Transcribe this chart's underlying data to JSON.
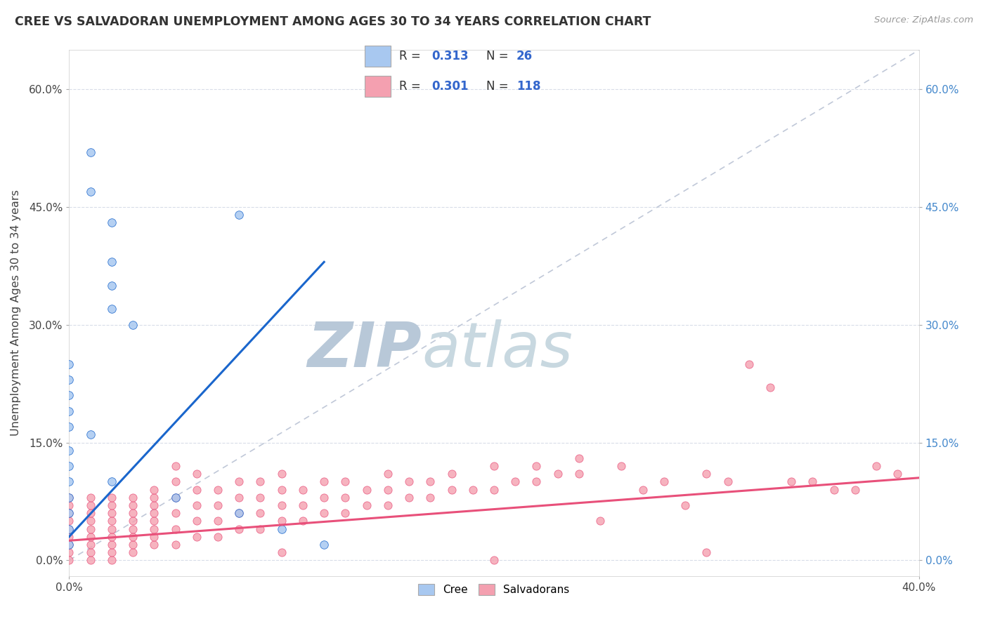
{
  "title": "CREE VS SALVADORAN UNEMPLOYMENT AMONG AGES 30 TO 34 YEARS CORRELATION CHART",
  "source": "Source: ZipAtlas.com",
  "ylabel": "Unemployment Among Ages 30 to 34 years",
  "xlim": [
    0.0,
    0.4
  ],
  "ylim": [
    -0.02,
    0.65
  ],
  "yticks": [
    0.0,
    0.15,
    0.3,
    0.45,
    0.6
  ],
  "ytick_labels": [
    "0.0%",
    "15.0%",
    "30.0%",
    "45.0%",
    "60.0%"
  ],
  "xticks": [
    0.0,
    0.4
  ],
  "xtick_labels": [
    "0.0%",
    "40.0%"
  ],
  "legend_r_cree": "0.313",
  "legend_n_cree": "26",
  "legend_r_salv": "0.301",
  "legend_n_salv": "118",
  "cree_color": "#a8c8f0",
  "salv_color": "#f4a0b0",
  "trendline_cree_color": "#1a66cc",
  "trendline_salv_color": "#e8507a",
  "diagonal_color": "#c0c8d8",
  "background_color": "#ffffff",
  "grid_color": "#d8dde8",
  "cree_scatter": [
    [
      0.01,
      0.52
    ],
    [
      0.01,
      0.47
    ],
    [
      0.02,
      0.43
    ],
    [
      0.02,
      0.38
    ],
    [
      0.02,
      0.35
    ],
    [
      0.02,
      0.32
    ],
    [
      0.03,
      0.3
    ],
    [
      0.08,
      0.44
    ],
    [
      0.0,
      0.25
    ],
    [
      0.0,
      0.23
    ],
    [
      0.0,
      0.21
    ],
    [
      0.0,
      0.19
    ],
    [
      0.0,
      0.17
    ],
    [
      0.0,
      0.14
    ],
    [
      0.0,
      0.12
    ],
    [
      0.0,
      0.1
    ],
    [
      0.0,
      0.08
    ],
    [
      0.0,
      0.06
    ],
    [
      0.0,
      0.04
    ],
    [
      0.01,
      0.16
    ],
    [
      0.02,
      0.1
    ],
    [
      0.05,
      0.08
    ],
    [
      0.08,
      0.06
    ],
    [
      0.1,
      0.04
    ],
    [
      0.12,
      0.02
    ],
    [
      0.0,
      0.02
    ]
  ],
  "salv_scatter": [
    [
      0.0,
      0.02
    ],
    [
      0.0,
      0.03
    ],
    [
      0.0,
      0.04
    ],
    [
      0.0,
      0.05
    ],
    [
      0.0,
      0.06
    ],
    [
      0.0,
      0.07
    ],
    [
      0.0,
      0.08
    ],
    [
      0.0,
      0.01
    ],
    [
      0.0,
      0.0
    ],
    [
      0.01,
      0.0
    ],
    [
      0.01,
      0.01
    ],
    [
      0.01,
      0.02
    ],
    [
      0.01,
      0.03
    ],
    [
      0.01,
      0.04
    ],
    [
      0.01,
      0.05
    ],
    [
      0.01,
      0.06
    ],
    [
      0.01,
      0.07
    ],
    [
      0.01,
      0.08
    ],
    [
      0.02,
      0.0
    ],
    [
      0.02,
      0.01
    ],
    [
      0.02,
      0.02
    ],
    [
      0.02,
      0.03
    ],
    [
      0.02,
      0.04
    ],
    [
      0.02,
      0.05
    ],
    [
      0.02,
      0.06
    ],
    [
      0.02,
      0.07
    ],
    [
      0.02,
      0.08
    ],
    [
      0.03,
      0.01
    ],
    [
      0.03,
      0.02
    ],
    [
      0.03,
      0.03
    ],
    [
      0.03,
      0.04
    ],
    [
      0.03,
      0.05
    ],
    [
      0.03,
      0.06
    ],
    [
      0.03,
      0.07
    ],
    [
      0.03,
      0.08
    ],
    [
      0.04,
      0.02
    ],
    [
      0.04,
      0.03
    ],
    [
      0.04,
      0.04
    ],
    [
      0.04,
      0.05
    ],
    [
      0.04,
      0.06
    ],
    [
      0.04,
      0.07
    ],
    [
      0.04,
      0.08
    ],
    [
      0.04,
      0.09
    ],
    [
      0.05,
      0.02
    ],
    [
      0.05,
      0.04
    ],
    [
      0.05,
      0.06
    ],
    [
      0.05,
      0.08
    ],
    [
      0.05,
      0.1
    ],
    [
      0.05,
      0.12
    ],
    [
      0.06,
      0.03
    ],
    [
      0.06,
      0.05
    ],
    [
      0.06,
      0.07
    ],
    [
      0.06,
      0.09
    ],
    [
      0.06,
      0.11
    ],
    [
      0.07,
      0.03
    ],
    [
      0.07,
      0.05
    ],
    [
      0.07,
      0.07
    ],
    [
      0.07,
      0.09
    ],
    [
      0.08,
      0.04
    ],
    [
      0.08,
      0.06
    ],
    [
      0.08,
      0.08
    ],
    [
      0.08,
      0.1
    ],
    [
      0.09,
      0.04
    ],
    [
      0.09,
      0.06
    ],
    [
      0.09,
      0.08
    ],
    [
      0.09,
      0.1
    ],
    [
      0.1,
      0.05
    ],
    [
      0.1,
      0.07
    ],
    [
      0.1,
      0.09
    ],
    [
      0.1,
      0.11
    ],
    [
      0.11,
      0.05
    ],
    [
      0.11,
      0.07
    ],
    [
      0.11,
      0.09
    ],
    [
      0.12,
      0.06
    ],
    [
      0.12,
      0.08
    ],
    [
      0.12,
      0.1
    ],
    [
      0.13,
      0.06
    ],
    [
      0.13,
      0.08
    ],
    [
      0.13,
      0.1
    ],
    [
      0.14,
      0.07
    ],
    [
      0.14,
      0.09
    ],
    [
      0.15,
      0.07
    ],
    [
      0.15,
      0.09
    ],
    [
      0.15,
      0.11
    ],
    [
      0.16,
      0.08
    ],
    [
      0.16,
      0.1
    ],
    [
      0.17,
      0.08
    ],
    [
      0.17,
      0.1
    ],
    [
      0.18,
      0.09
    ],
    [
      0.18,
      0.11
    ],
    [
      0.19,
      0.09
    ],
    [
      0.2,
      0.09
    ],
    [
      0.2,
      0.12
    ],
    [
      0.21,
      0.1
    ],
    [
      0.22,
      0.1
    ],
    [
      0.22,
      0.12
    ],
    [
      0.23,
      0.11
    ],
    [
      0.24,
      0.11
    ],
    [
      0.24,
      0.13
    ],
    [
      0.25,
      0.05
    ],
    [
      0.26,
      0.12
    ],
    [
      0.27,
      0.09
    ],
    [
      0.28,
      0.1
    ],
    [
      0.29,
      0.07
    ],
    [
      0.3,
      0.11
    ],
    [
      0.31,
      0.1
    ],
    [
      0.32,
      0.25
    ],
    [
      0.33,
      0.22
    ],
    [
      0.34,
      0.1
    ],
    [
      0.35,
      0.1
    ],
    [
      0.36,
      0.09
    ],
    [
      0.37,
      0.09
    ],
    [
      0.38,
      0.12
    ],
    [
      0.39,
      0.11
    ],
    [
      0.2,
      0.0
    ],
    [
      0.1,
      0.01
    ],
    [
      0.3,
      0.01
    ]
  ],
  "cree_trendline": [
    [
      0.0,
      0.03
    ],
    [
      0.12,
      0.38
    ]
  ],
  "salv_trendline": [
    [
      0.0,
      0.025
    ],
    [
      0.4,
      0.105
    ]
  ],
  "watermark_zip": "ZIP",
  "watermark_atlas": "atlas",
  "watermark_color": "#ccd8e8"
}
